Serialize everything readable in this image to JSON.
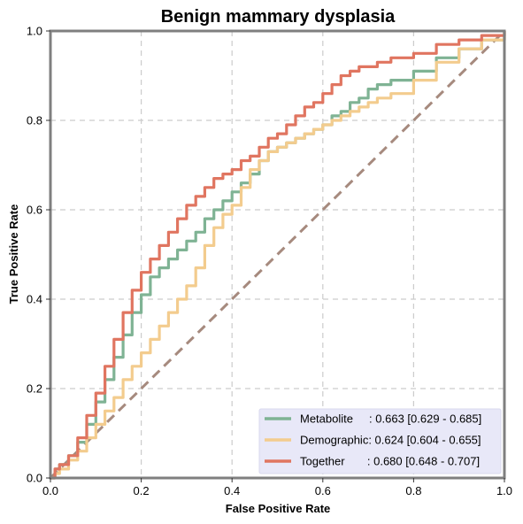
{
  "chart_data": {
    "type": "line",
    "title": "Benign mammary dysplasia",
    "xlabel": "False Positive Rate",
    "ylabel": "True Positive Rate",
    "xlim": [
      0,
      1
    ],
    "ylim": [
      0,
      1
    ],
    "x_ticks": [
      "0.0",
      "0.2",
      "0.4",
      "0.6",
      "0.8",
      "1.0"
    ],
    "y_ticks": [
      "0.0",
      "0.2",
      "0.4",
      "0.6",
      "0.8",
      "1.0"
    ],
    "grid": true,
    "legend_position": "lower-right",
    "legend_background": "#e8e8f8",
    "diagonal": {
      "color": "#a68a7e",
      "dash": true
    },
    "series": [
      {
        "name": "Metabolite",
        "label": "Metabolite     : 0.663 [0.629 - 0.685]",
        "color": "#7fb394",
        "x": [
          0,
          0.01,
          0.02,
          0.04,
          0.06,
          0.08,
          0.1,
          0.12,
          0.14,
          0.16,
          0.18,
          0.2,
          0.22,
          0.24,
          0.26,
          0.28,
          0.3,
          0.32,
          0.34,
          0.36,
          0.38,
          0.4,
          0.42,
          0.44,
          0.46,
          0.48,
          0.5,
          0.52,
          0.54,
          0.56,
          0.58,
          0.6,
          0.62,
          0.64,
          0.66,
          0.68,
          0.7,
          0.72,
          0.75,
          0.8,
          0.85,
          0.9,
          0.95,
          1.0
        ],
        "y": [
          0,
          0.02,
          0.03,
          0.05,
          0.08,
          0.12,
          0.17,
          0.22,
          0.27,
          0.32,
          0.37,
          0.41,
          0.45,
          0.47,
          0.49,
          0.51,
          0.53,
          0.55,
          0.58,
          0.6,
          0.62,
          0.64,
          0.66,
          0.68,
          0.71,
          0.73,
          0.74,
          0.75,
          0.76,
          0.77,
          0.78,
          0.79,
          0.81,
          0.82,
          0.84,
          0.85,
          0.87,
          0.88,
          0.89,
          0.91,
          0.94,
          0.96,
          0.98,
          1.0
        ]
      },
      {
        "name": "Demographic",
        "label": "Demographic: 0.624 [0.604 - 0.655]",
        "color": "#f3cc8e",
        "x": [
          0,
          0.01,
          0.02,
          0.04,
          0.06,
          0.08,
          0.1,
          0.12,
          0.14,
          0.16,
          0.18,
          0.2,
          0.22,
          0.24,
          0.26,
          0.28,
          0.3,
          0.32,
          0.34,
          0.36,
          0.38,
          0.4,
          0.42,
          0.44,
          0.46,
          0.48,
          0.5,
          0.52,
          0.54,
          0.56,
          0.58,
          0.6,
          0.62,
          0.64,
          0.66,
          0.68,
          0.7,
          0.72,
          0.75,
          0.8,
          0.85,
          0.9,
          0.95,
          1.0
        ],
        "y": [
          0,
          0.01,
          0.02,
          0.04,
          0.06,
          0.09,
          0.12,
          0.15,
          0.18,
          0.22,
          0.25,
          0.28,
          0.31,
          0.34,
          0.37,
          0.4,
          0.43,
          0.47,
          0.52,
          0.56,
          0.59,
          0.61,
          0.65,
          0.69,
          0.71,
          0.73,
          0.74,
          0.75,
          0.76,
          0.77,
          0.78,
          0.79,
          0.8,
          0.81,
          0.82,
          0.83,
          0.84,
          0.85,
          0.86,
          0.89,
          0.93,
          0.96,
          0.98,
          1.0
        ]
      },
      {
        "name": "Together",
        "label": "Together       : 0.680 [0.648 - 0.707]",
        "color": "#e07560",
        "x": [
          0,
          0.01,
          0.02,
          0.04,
          0.06,
          0.08,
          0.1,
          0.12,
          0.14,
          0.16,
          0.18,
          0.2,
          0.22,
          0.24,
          0.26,
          0.28,
          0.3,
          0.32,
          0.34,
          0.36,
          0.38,
          0.4,
          0.42,
          0.44,
          0.46,
          0.48,
          0.5,
          0.52,
          0.54,
          0.56,
          0.58,
          0.6,
          0.62,
          0.64,
          0.66,
          0.68,
          0.7,
          0.72,
          0.75,
          0.8,
          0.85,
          0.9,
          0.95,
          1.0
        ],
        "y": [
          0,
          0.02,
          0.03,
          0.05,
          0.09,
          0.14,
          0.19,
          0.25,
          0.31,
          0.37,
          0.42,
          0.46,
          0.49,
          0.52,
          0.55,
          0.58,
          0.61,
          0.63,
          0.65,
          0.67,
          0.68,
          0.69,
          0.71,
          0.72,
          0.74,
          0.76,
          0.77,
          0.79,
          0.81,
          0.83,
          0.84,
          0.86,
          0.88,
          0.9,
          0.91,
          0.92,
          0.92,
          0.93,
          0.94,
          0.95,
          0.97,
          0.98,
          0.99,
          1.0
        ]
      }
    ]
  }
}
